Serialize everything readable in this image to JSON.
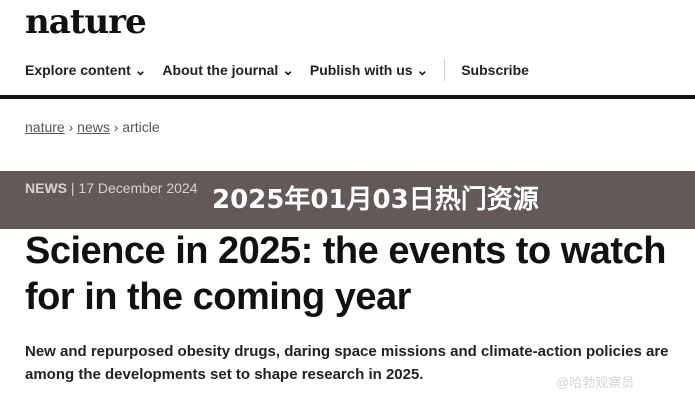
{
  "logo": "nature",
  "nav": [
    "Explore content ⌄",
    "About the journal ⌄",
    "Publish with us ⌄",
    "Subscribe"
  ],
  "breadcrumb": {
    "a": "nature",
    "b": "news",
    "c": "article",
    "sep": "›"
  },
  "meta": {
    "type": "NEWS",
    "date": "17 December 2024"
  },
  "banner": "2025年01月03日热门资源",
  "title": "Science in 2025: the events to watch for in the coming year",
  "standfirst": "New and repurposed obesity drugs, daring space missions and climate-action policies are among the developments set to shape research in 2025.",
  "watermark": "@哈勃观察员"
}
